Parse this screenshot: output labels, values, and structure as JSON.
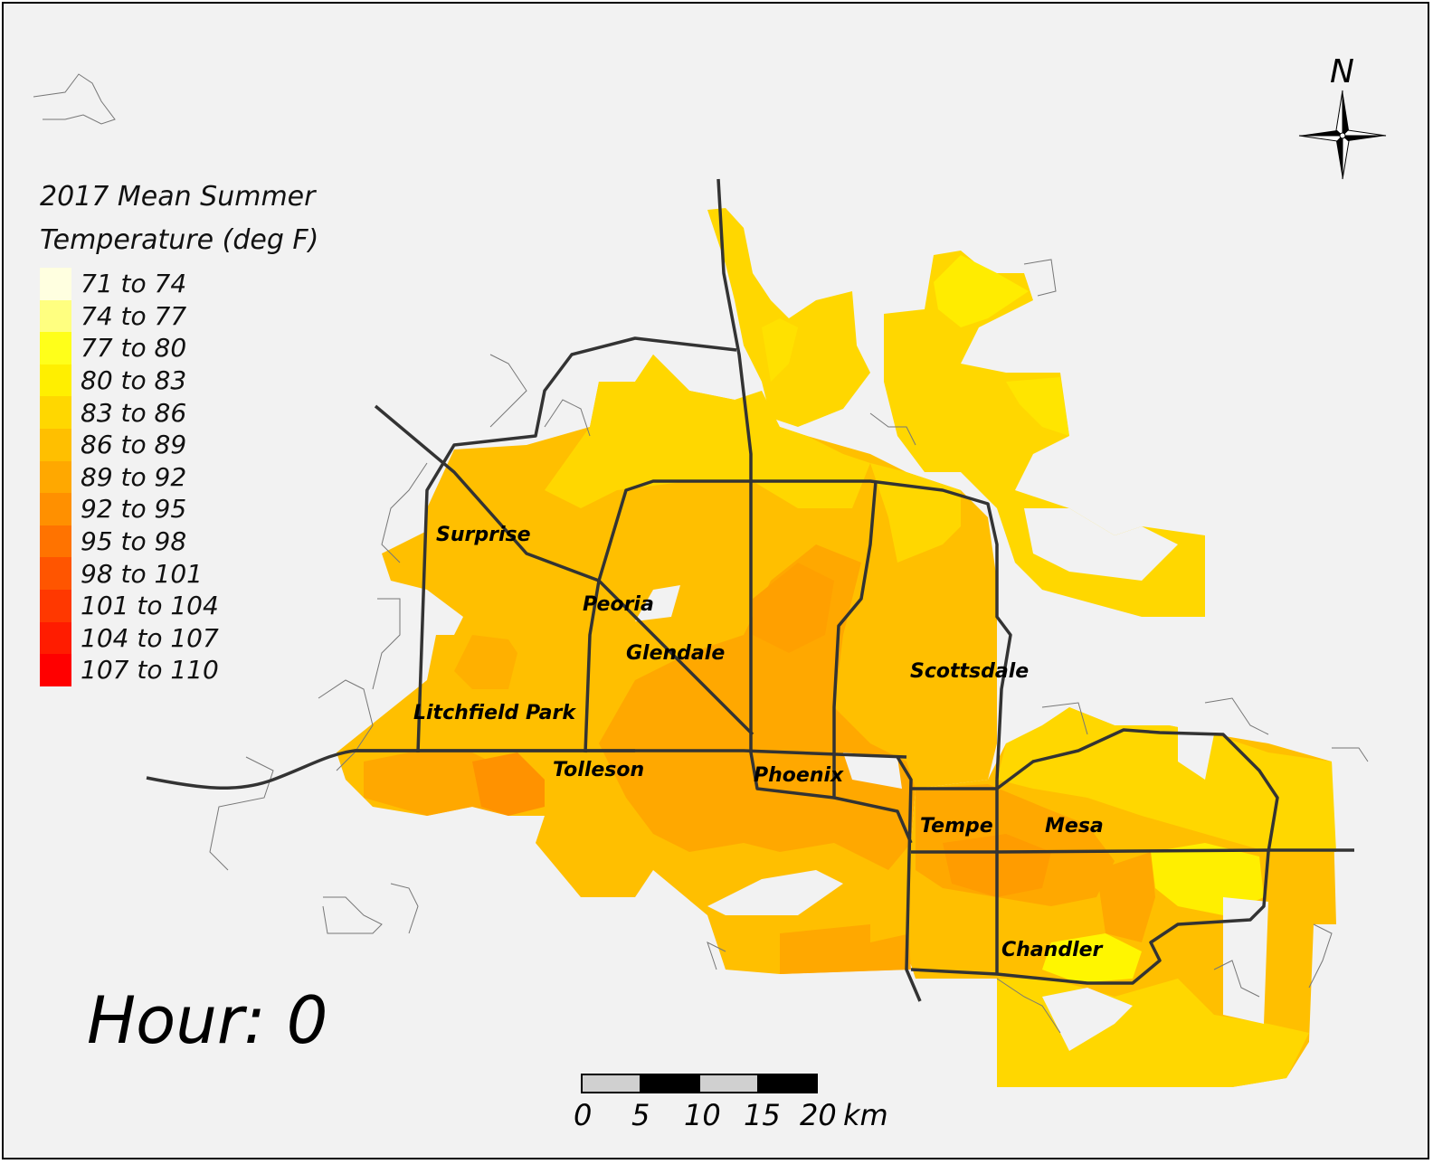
{
  "legend": {
    "title_line1": "2017 Mean Summer",
    "title_line2": "Temperature (deg F)",
    "classes": [
      {
        "label": "71 to 74",
        "color": "#ffffe0"
      },
      {
        "label": "74 to 77",
        "color": "#ffff80"
      },
      {
        "label": "77 to 80",
        "color": "#ffff1a"
      },
      {
        "label": "80 to 83",
        "color": "#ffef00"
      },
      {
        "label": "83 to 86",
        "color": "#ffd700"
      },
      {
        "label": "86 to 89",
        "color": "#ffbf00"
      },
      {
        "label": "89 to 92",
        "color": "#ffa800"
      },
      {
        "label": "92 to 95",
        "color": "#ff9000"
      },
      {
        "label": "95 to 98",
        "color": "#ff7300"
      },
      {
        "label": "98 to 101",
        "color": "#ff5500"
      },
      {
        "label": "101 to 104",
        "color": "#ff3800"
      },
      {
        "label": "104 to 107",
        "color": "#ff1c00"
      },
      {
        "label": "107 to 110",
        "color": "#ff0000"
      }
    ]
  },
  "hour_label": "Hour: 0",
  "north_arrow": {
    "label": "N",
    "icon": "north-arrow-icon"
  },
  "cities": [
    "Surprise",
    "Peoria",
    "Glendale",
    "Scottsdale",
    "Litchfield Park",
    "Tolleson",
    "Phoenix",
    "Tempe",
    "Mesa",
    "Chandler"
  ],
  "scale_bar": {
    "ticks": [
      "0",
      "5",
      "10",
      "15",
      "20"
    ],
    "unit": "km"
  },
  "colors": {
    "background": "#f2f2f2",
    "highway": "#333333",
    "boundary": "#666666"
  }
}
